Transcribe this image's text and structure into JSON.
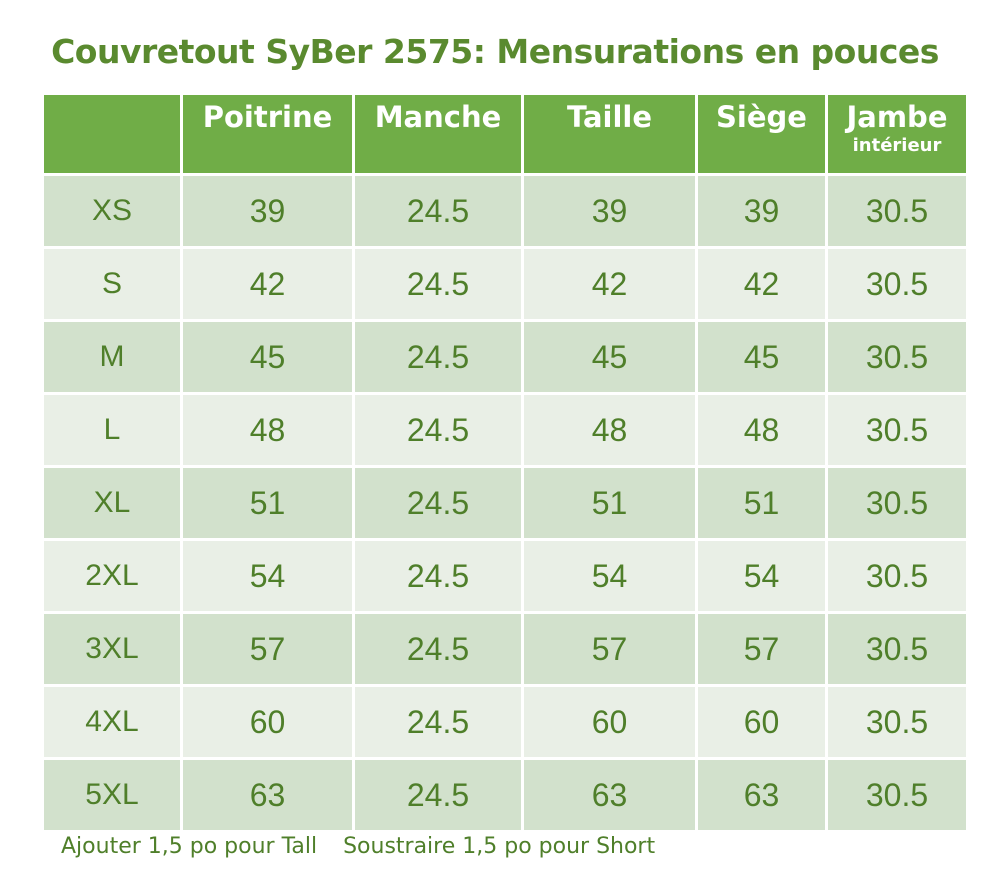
{
  "title": "Couvretout SyBer 2575: Mensurations en pouces",
  "headers": [
    {
      "label": "",
      "sub": ""
    },
    {
      "label": "Poitrine",
      "sub": ""
    },
    {
      "label": "Manche",
      "sub": ""
    },
    {
      "label": "Taille",
      "sub": ""
    },
    {
      "label": "Siège",
      "sub": ""
    },
    {
      "label": "Jambe",
      "sub": "intérieur"
    }
  ],
  "rows": [
    [
      "XS",
      "39",
      "24.5",
      "39",
      "39",
      "30.5"
    ],
    [
      "S",
      "42",
      "24.5",
      "42",
      "42",
      "30.5"
    ],
    [
      "M",
      "45",
      "24.5",
      "45",
      "45",
      "30.5"
    ],
    [
      "L",
      "48",
      "24.5",
      "48",
      "48",
      "30.5"
    ],
    [
      "XL",
      "51",
      "24.5",
      "51",
      "51",
      "30.5"
    ],
    [
      "2XL",
      "54",
      "24.5",
      "54",
      "54",
      "30.5"
    ],
    [
      "3XL",
      "57",
      "24.5",
      "57",
      "57",
      "30.5"
    ],
    [
      "4XL",
      "60",
      "24.5",
      "60",
      "60",
      "30.5"
    ],
    [
      "5XL",
      "63",
      "24.5",
      "63",
      "63",
      "30.5"
    ]
  ],
  "footer": {
    "tall": "Ajouter 1,5 po pour Tall",
    "short": "Soustraire 1,5 po pour Short"
  },
  "colors": {
    "header_bg": "#70ad47",
    "row_dark": "#d2e1cc",
    "row_light": "#e9efe6",
    "text": "#4f7f2a"
  }
}
